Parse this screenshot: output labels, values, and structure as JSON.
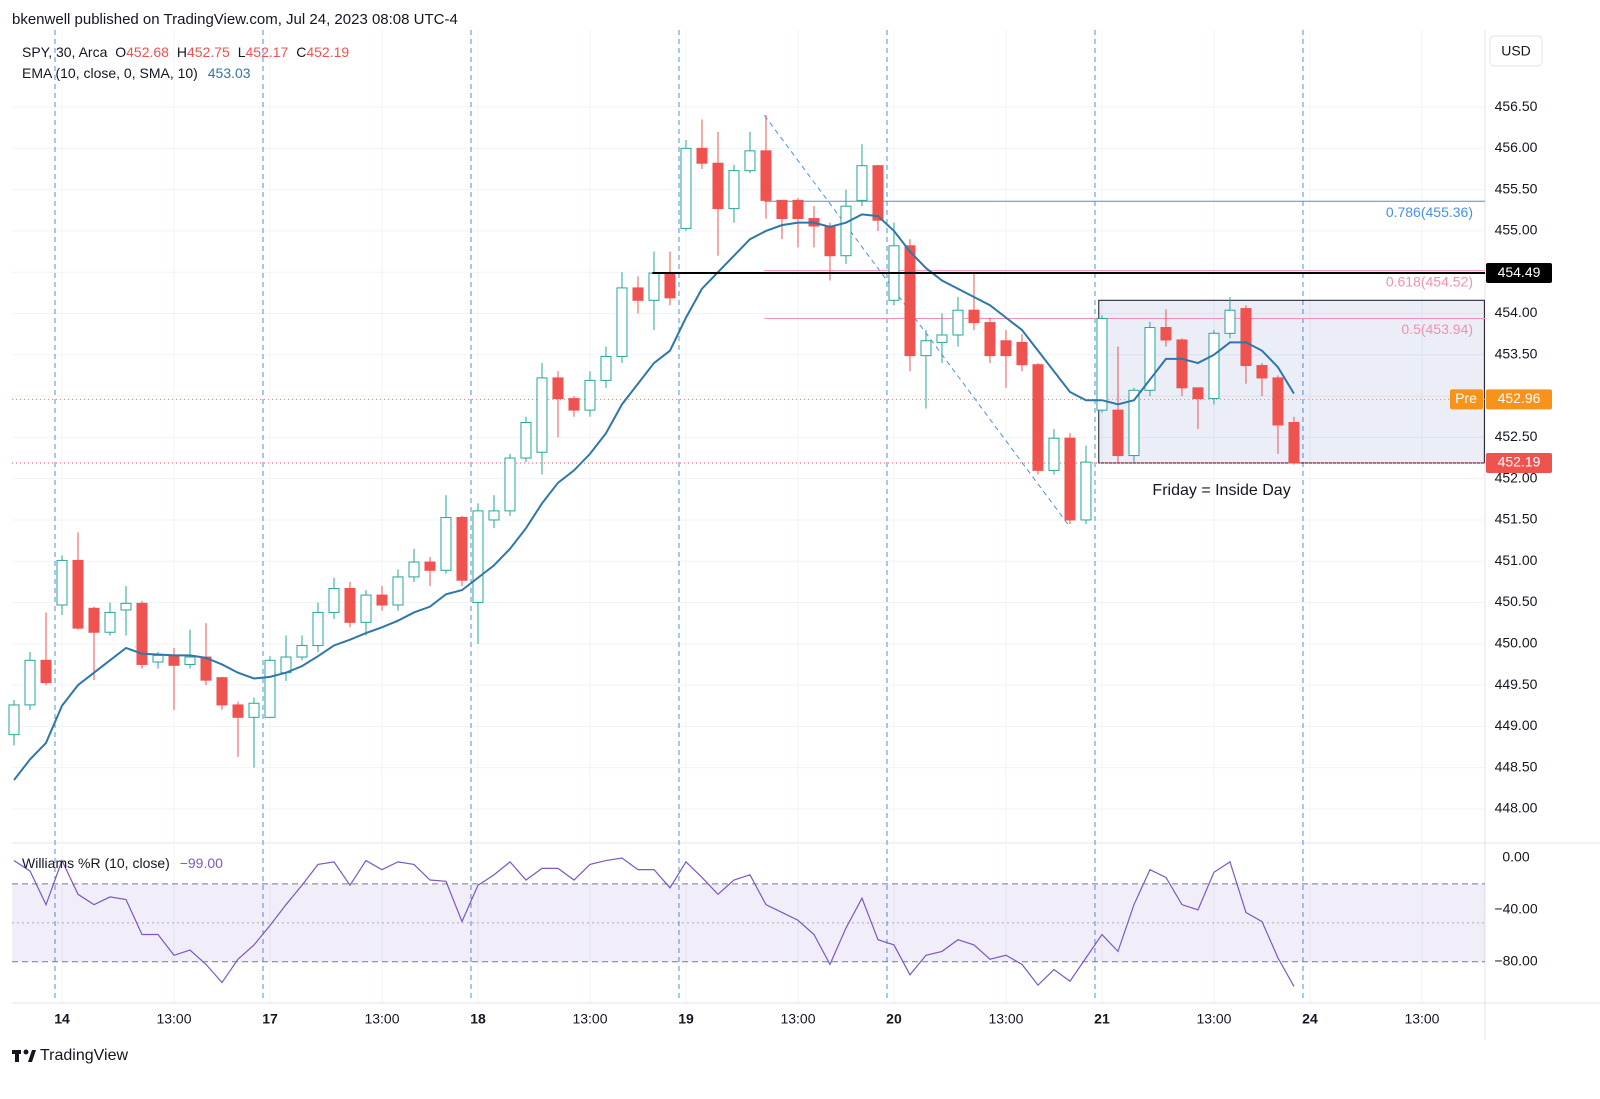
{
  "header": {
    "published": "bkenwell published on TradingView.com, Jul 24, 2023 08:08 UTC-4"
  },
  "footer": {
    "brand": "TradingView"
  },
  "chart_data": {
    "type": "candlestick",
    "symbol": "SPY, 30, Arca",
    "ohlc_legend": [
      {
        "label": "O",
        "value": 452.68
      },
      {
        "label": "H",
        "value": 452.75
      },
      {
        "label": "L",
        "value": 452.17
      },
      {
        "label": "C",
        "value": 452.19
      }
    ],
    "currency": "USD",
    "up_color": "#26a69a",
    "down_color": "#ef5350",
    "open": [
      448.9,
      449.26,
      449.8,
      450.47,
      451.01,
      450.43,
      450.14,
      450.41,
      450.49,
      449.78,
      449.86,
      449.75,
      449.84,
      449.59,
      449.26,
      449.11,
      449.11,
      449.65,
      449.84,
      449.98,
      450.38,
      450.67,
      450.26,
      450.59,
      450.47,
      450.81,
      450.99,
      450.89,
      451.53,
      450.5,
      451.5,
      451.61,
      452.25,
      452.32,
      453.22,
      452.97,
      452.83,
      453.19,
      453.48,
      454.31,
      454.16,
      454.49,
      455.03,
      456.0,
      455.82,
      455.27,
      455.73,
      455.97,
      455.37,
      455.37,
      455.15,
      455.06,
      454.7,
      455.37,
      455.79,
      454.16,
      454.82,
      453.49,
      453.65,
      453.74,
      454.04,
      453.89,
      453.67,
      453.65,
      453.38,
      452.1,
      452.49,
      451.5,
      452.83,
      452.83,
      452.28,
      453.07,
      453.83,
      453.68,
      453.1,
      452.97,
      453.76,
      454.06,
      453.37,
      453.22,
      452.68
    ],
    "high": [
      449.32,
      449.9,
      450.38,
      451.07,
      451.35,
      450.45,
      450.5,
      450.7,
      450.52,
      449.9,
      449.95,
      450.17,
      450.25,
      449.6,
      449.3,
      449.35,
      449.85,
      450.1,
      450.1,
      450.5,
      450.8,
      450.75,
      450.65,
      450.7,
      450.9,
      451.15,
      451.05,
      451.8,
      451.55,
      451.7,
      451.8,
      452.3,
      452.75,
      453.4,
      453.3,
      453.0,
      453.3,
      453.6,
      454.5,
      454.45,
      454.75,
      454.75,
      456.1,
      456.35,
      456.2,
      455.8,
      456.2,
      456.4,
      455.37,
      455.4,
      455.3,
      455.1,
      455.5,
      456.05,
      455.8,
      455.1,
      454.9,
      453.8,
      454.0,
      454.2,
      454.5,
      453.95,
      453.8,
      453.75,
      453.4,
      452.6,
      452.55,
      452.4,
      453.98,
      453.6,
      453.1,
      453.9,
      454.05,
      453.7,
      453.1,
      453.8,
      454.2,
      454.1,
      453.4,
      453.25,
      452.75
    ],
    "low": [
      448.77,
      449.2,
      449.5,
      450.35,
      450.17,
      449.56,
      450.1,
      450.1,
      449.7,
      449.7,
      449.2,
      449.7,
      449.5,
      449.2,
      448.63,
      448.5,
      449.1,
      449.55,
      449.8,
      449.9,
      450.3,
      450.2,
      450.1,
      450.4,
      450.4,
      450.75,
      450.7,
      450.85,
      450.7,
      450.0,
      451.4,
      451.55,
      452.2,
      452.05,
      452.5,
      452.75,
      452.75,
      453.1,
      453.4,
      454.0,
      453.8,
      454.1,
      455.0,
      455.75,
      454.7,
      455.1,
      455.7,
      455.15,
      454.9,
      454.8,
      454.8,
      454.4,
      454.6,
      455.3,
      455.0,
      454.1,
      453.3,
      452.85,
      453.4,
      453.6,
      453.8,
      453.4,
      453.1,
      453.3,
      452.05,
      452.05,
      451.45,
      451.45,
      452.8,
      452.2,
      452.2,
      453.0,
      453.6,
      453.0,
      452.6,
      452.9,
      453.7,
      453.15,
      453.0,
      452.3,
      452.17
    ],
    "close": [
      449.26,
      449.8,
      449.53,
      451.01,
      450.19,
      450.14,
      450.38,
      450.49,
      449.75,
      449.86,
      449.74,
      449.84,
      449.56,
      449.26,
      449.11,
      449.28,
      449.8,
      449.84,
      449.98,
      450.38,
      450.67,
      450.26,
      450.59,
      450.47,
      450.81,
      450.99,
      450.89,
      451.53,
      450.77,
      451.61,
      451.61,
      452.25,
      452.68,
      453.22,
      452.97,
      452.83,
      453.19,
      453.48,
      454.31,
      454.16,
      454.49,
      454.19,
      456.0,
      455.82,
      455.27,
      455.73,
      455.97,
      455.37,
      455.15,
      455.15,
      455.06,
      454.7,
      455.3,
      455.79,
      455.13,
      454.82,
      453.49,
      453.67,
      453.74,
      454.04,
      453.89,
      453.49,
      453.49,
      453.38,
      452.1,
      452.49,
      451.5,
      452.2,
      453.94,
      452.28,
      453.07,
      453.83,
      453.68,
      453.1,
      452.97,
      453.76,
      454.04,
      453.37,
      453.22,
      452.65,
      452.19
    ],
    "indicator": {
      "name": "EMA (10, close, 0, SMA, 10)",
      "value": 453.03,
      "color": "#2e77a8",
      "values": [
        448.35,
        448.6,
        448.8,
        449.25,
        449.5,
        449.65,
        449.8,
        449.95,
        449.88,
        449.87,
        449.86,
        449.86,
        449.83,
        449.75,
        449.65,
        449.58,
        449.6,
        449.65,
        449.73,
        449.85,
        449.98,
        450.05,
        450.13,
        450.2,
        450.28,
        450.38,
        450.45,
        450.6,
        450.65,
        450.8,
        450.95,
        451.15,
        451.4,
        451.7,
        451.95,
        452.1,
        452.3,
        452.55,
        452.9,
        453.15,
        453.4,
        453.55,
        453.95,
        454.3,
        454.5,
        454.7,
        454.9,
        455.0,
        455.07,
        455.1,
        455.1,
        455.05,
        455.1,
        455.2,
        455.18,
        455.0,
        454.75,
        454.55,
        454.4,
        454.3,
        454.2,
        454.1,
        453.95,
        453.8,
        453.55,
        453.3,
        453.05,
        452.95,
        452.95,
        452.9,
        452.95,
        453.2,
        453.45,
        453.45,
        453.4,
        453.5,
        453.65,
        453.65,
        453.55,
        453.35,
        453.03
      ]
    },
    "xlim": [
      -0.125,
      91.94
    ],
    "xticks": [
      {
        "value": 3,
        "label": "14"
      },
      {
        "value": 10,
        "label": "13:00"
      },
      {
        "value": 16,
        "label": "17"
      },
      {
        "value": 23,
        "label": "13:00"
      },
      {
        "value": 29,
        "label": "18"
      },
      {
        "value": 36,
        "label": "13:00"
      },
      {
        "value": 42,
        "label": "19"
      },
      {
        "value": 49,
        "label": "13:00"
      },
      {
        "value": 55,
        "label": "20"
      },
      {
        "value": 62,
        "label": "13:00"
      },
      {
        "value": 68,
        "label": "21"
      },
      {
        "value": 75,
        "label": "13:00"
      },
      {
        "value": 81,
        "label": "24"
      },
      {
        "value": 88,
        "label": "13:00"
      }
    ],
    "ylim": [
      447.6,
      457.07
    ],
    "yticks": [
      {
        "value": 448,
        "label": "448.00"
      },
      {
        "value": 448.5,
        "label": "448.50"
      },
      {
        "value": 449,
        "label": "449.00"
      },
      {
        "value": 449.5,
        "label": "449.50"
      },
      {
        "value": 450,
        "label": "450.00"
      },
      {
        "value": 450.5,
        "label": "450.50"
      },
      {
        "value": 451,
        "label": "451.00"
      },
      {
        "value": 451.5,
        "label": "451.50"
      },
      {
        "value": 452,
        "label": "452.00"
      },
      {
        "value": 452.5,
        "label": "452.50"
      },
      {
        "value": 453,
        "label": "453.00"
      },
      {
        "value": 453.5,
        "label": "453.50"
      },
      {
        "value": 454,
        "label": "454.00"
      },
      {
        "value": 454.5,
        "label": "454.50"
      },
      {
        "value": 455,
        "label": "455.00"
      },
      {
        "value": 455.5,
        "label": "455.50"
      },
      {
        "value": 456,
        "label": "456.00"
      },
      {
        "value": 456.5,
        "label": "456.50"
      }
    ],
    "grid": true,
    "price_lines": [
      {
        "value": 454.49,
        "color": "#000000",
        "from": 39.9
      }
    ],
    "fib_from": 46.9,
    "fib_levels": [
      {
        "label": "0.786(455.36)",
        "value": 455.36,
        "color": "#4a90e2"
      },
      {
        "label": "0.618(454.52)",
        "value": 454.52,
        "color": "#f48fb1"
      },
      {
        "label": "0.5(453.94)",
        "value": 453.94,
        "color": "#f48fb1"
      }
    ],
    "trend_line": {
      "x": [
        46.9,
        65.9
      ],
      "y": [
        456.4,
        451.44
      ],
      "color": "#4a90e2"
    },
    "rectangle": {
      "x": [
        67.8,
        91.9
      ],
      "y": [
        452.19,
        454.16
      ],
      "label": "Friday = Inside Day"
    },
    "premarket": {
      "label": "Pre",
      "value": 452.96,
      "color": "#f7931a"
    },
    "last": {
      "value": 452.19,
      "color": "#ef5350"
    },
    "williams": {
      "type": "line",
      "name": "Williams %R (10, close)",
      "value_label": "−99.00",
      "color": "#7e57c2",
      "values": [
        -2,
        -10,
        -36,
        -2,
        -28,
        -36,
        -30,
        -32,
        -59,
        -59,
        -75,
        -71,
        -82,
        -96,
        -78,
        -67,
        -52,
        -36,
        -21,
        -5,
        -3,
        -21,
        -2,
        -9,
        -3,
        -5,
        -17,
        -18,
        -49,
        -21,
        -13,
        -3,
        -17,
        -8,
        -8,
        -17,
        -5,
        -2,
        0,
        -9,
        -9,
        -23,
        -3,
        -15,
        -28,
        -17,
        -13,
        -36,
        -42,
        -48,
        -59,
        -82,
        -54,
        -31,
        -63,
        -67,
        -90,
        -75,
        -72,
        -63,
        -67,
        -78,
        -75,
        -82,
        -98,
        -86,
        -95,
        -77,
        -59,
        -72,
        -36,
        -9,
        -15,
        -36,
        -40,
        -11,
        -3,
        -42,
        -49,
        -77,
        -99
      ],
      "ylim": [
        -111,
        10
      ],
      "yticks": [
        {
          "value": 0,
          "label": "0.00"
        },
        {
          "value": -40,
          "label": "−40.00"
        },
        {
          "value": -80,
          "label": "−80.00"
        }
      ],
      "band": [
        -80,
        -20
      ],
      "midline": -50
    }
  }
}
